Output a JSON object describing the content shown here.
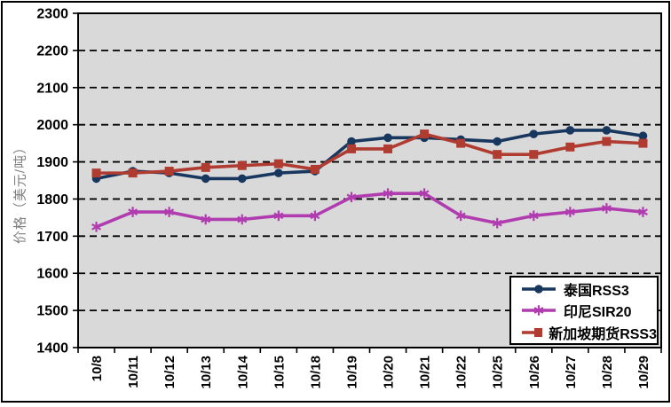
{
  "window": {
    "background": "#ffffff",
    "frame_border_color": "#000000"
  },
  "chart_data": {
    "type": "line",
    "title": "",
    "xlabel": "",
    "ylabel": "价格（美元/吨）",
    "ylim": [
      1400,
      2300
    ],
    "ytick_interval": 100,
    "y_ticks": [
      1400,
      1500,
      1600,
      1700,
      1800,
      1900,
      2000,
      2100,
      2200,
      2300
    ],
    "grid": "horizontal-dashed-black",
    "plot_background": "#d9d9d9",
    "axis_color": "#000000",
    "legend_position": "inside-bottom-right",
    "categories": [
      "10/8",
      "10/11",
      "10/12",
      "10/13",
      "10/14",
      "10/15",
      "10/18",
      "10/19",
      "10/20",
      "10/21",
      "10/22",
      "10/25",
      "10/26",
      "10/27",
      "10/28",
      "10/29"
    ],
    "series": [
      {
        "name": "泰国RSS3",
        "color": "#17375e",
        "marker": "circle",
        "values": [
          1855,
          1875,
          1870,
          1855,
          1855,
          1870,
          1875,
          1955,
          1965,
          1965,
          1960,
          1955,
          1975,
          1985,
          1985,
          1970
        ]
      },
      {
        "name": "印尼SIR20",
        "color": "#b03cb0",
        "marker": "asterisk",
        "values": [
          1725,
          1765,
          1765,
          1745,
          1745,
          1755,
          1755,
          1805,
          1815,
          1815,
          1755,
          1735,
          1755,
          1765,
          1775,
          1765
        ]
      },
      {
        "name": "新加坡期货RSS3",
        "color": "#b03b30",
        "marker": "square",
        "values": [
          1870,
          1870,
          1875,
          1885,
          1890,
          1895,
          1880,
          1935,
          1935,
          1975,
          1950,
          1920,
          1920,
          1940,
          1955,
          1950
        ]
      }
    ]
  }
}
